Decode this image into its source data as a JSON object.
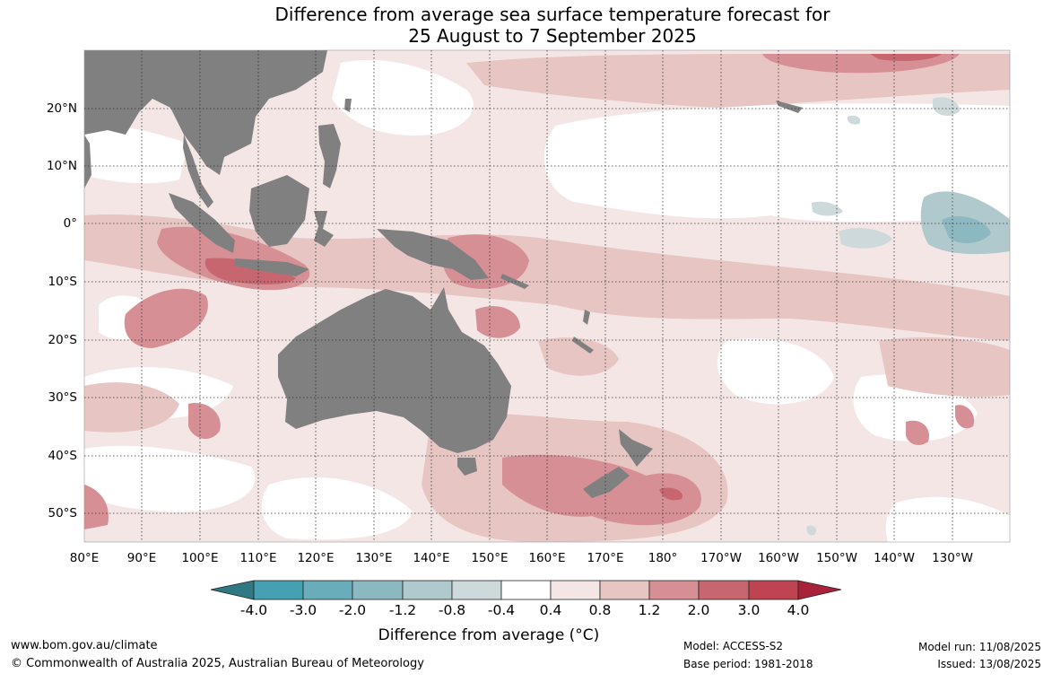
{
  "title": {
    "line1": "Difference from average sea surface temperature forecast for",
    "line2": "25 August to 7 September 2025"
  },
  "lat_labels": [
    "20°N",
    "10°N",
    "0°",
    "10°S",
    "20°S",
    "30°S",
    "40°S",
    "50°S"
  ],
  "lon_labels": [
    "80°E",
    "90°E",
    "100°E",
    "110°E",
    "120°E",
    "130°E",
    "140°E",
    "150°E",
    "160°E",
    "170°E",
    "180°",
    "170°W",
    "160°W",
    "150°W",
    "140°W",
    "130°W"
  ],
  "colorbar": {
    "title": "Difference from average (°C)",
    "ticks": [
      "-4.0",
      "-3.0",
      "-2.0",
      "-1.2",
      "-0.8",
      "-0.4",
      "0.4",
      "0.8",
      "1.2",
      "2.0",
      "3.0",
      "4.0"
    ],
    "colors": [
      "#2f7a82",
      "#45a1b1",
      "#69acba",
      "#8cb9c1",
      "#afc9cc",
      "#cdd9da",
      "#ffffff",
      "#f4e6e5",
      "#e7c5c3",
      "#d68f95",
      "#c86670",
      "#be4452",
      "#a8233a"
    ]
  },
  "colors": {
    "land": "#808080",
    "grid": "#333333"
  },
  "footer": {
    "url": "www.bom.gov.au/climate",
    "copyright": "© Commonwealth of Australia 2025, Australian Bureau of Meteorology",
    "model": "Model: ACCESS-S2",
    "base_period": "Base period: 1981-2018",
    "model_run": "Model run: 11/08/2025",
    "issued": "Issued: 13/08/2025"
  }
}
